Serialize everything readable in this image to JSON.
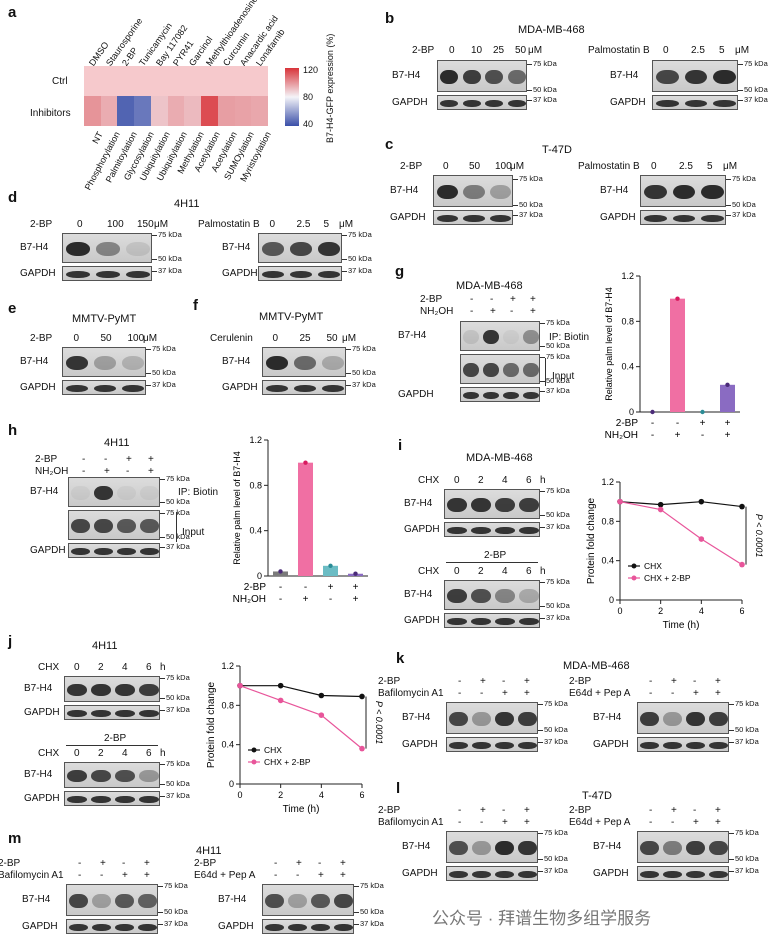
{
  "panel_a": {
    "letter": "a",
    "columns": [
      "DMSO",
      "Staurosporine",
      "2-BP",
      "Tunicamycin",
      "Bay 117082",
      "PYR41",
      "Garcinol",
      "Methylthioadenosine",
      "Curcumin",
      "Anacardic acid",
      "Lonafarnib"
    ],
    "rows": [
      "Ctrl",
      "Inhibitors"
    ],
    "bottom_labels": [
      "NT",
      "Phosphorylation",
      "Palmitoylation",
      "Glycosylation",
      "Ubiquitylation",
      "Ubiquitylation",
      "Methylation",
      "Acetylation",
      "Acetylation",
      "SUMOylation",
      "Myristoylation"
    ],
    "colorbar_label": "B7-H4-GFP expression (%)",
    "colorbar_ticks": [
      "120",
      "80",
      "40"
    ],
    "chart_data": {
      "type": "heatmap",
      "rows": [
        "Ctrl",
        "Inhibitors"
      ],
      "columns": [
        "DMSO",
        "Staurosporine",
        "2-BP",
        "Tunicamycin",
        "Bay 117082",
        "PYR41",
        "Garcinol",
        "Methylthioadenosine",
        "Curcumin",
        "Anacardic acid",
        "Lonafarnib"
      ],
      "values": [
        [
          100,
          100,
          100,
          100,
          100,
          100,
          100,
          100,
          100,
          100,
          100
        ],
        [
          100,
          95,
          45,
          50,
          90,
          95,
          92,
          115,
          98,
          97,
          96
        ]
      ],
      "scale": [
        40,
        120
      ],
      "colors": {
        "low": "#3a4fa8",
        "mid": "#f4f4f8",
        "high": "#d8343a"
      }
    }
  },
  "panel_b": {
    "letter": "b",
    "title": "MDA-MB-468",
    "left": {
      "treatment": "2-BP",
      "doses": [
        "0",
        "10",
        "25",
        "50"
      ],
      "unit": "μM",
      "rows": [
        "B7-H4",
        "GAPDH"
      ],
      "markers": [
        "75 kDa",
        "50 kDa",
        "37 kDa"
      ]
    },
    "right": {
      "treatment": "Palmostatin B",
      "doses": [
        "0",
        "2.5",
        "5"
      ],
      "unit": "μM",
      "rows": [
        "B7-H4",
        "GAPDH"
      ],
      "markers": [
        "75 kDa",
        "50 kDa",
        "37 kDa"
      ]
    }
  },
  "panel_c": {
    "letter": "c",
    "title": "T-47D",
    "left": {
      "treatment": "2-BP",
      "doses": [
        "0",
        "50",
        "100"
      ],
      "unit": "μM",
      "rows": [
        "B7-H4",
        "GAPDH"
      ],
      "markers": [
        "75 kDa",
        "50 kDa",
        "37 kDa"
      ]
    },
    "right": {
      "treatment": "Palmostatin B",
      "doses": [
        "0",
        "2.5",
        "5"
      ],
      "unit": "μM",
      "rows": [
        "B7-H4",
        "GAPDH"
      ],
      "markers": [
        "75 kDa",
        "50 kDa",
        "37 kDa"
      ]
    }
  },
  "panel_d": {
    "letter": "d",
    "title": "4H11",
    "left": {
      "treatment": "2-BP",
      "doses": [
        "0",
        "100",
        "150"
      ],
      "unit": "μM",
      "rows": [
        "B7-H4",
        "GAPDH"
      ],
      "markers": [
        "75 kDa",
        "50 kDa",
        "37 kDa"
      ]
    },
    "right": {
      "treatment": "Palmostatin B",
      "doses": [
        "0",
        "2.5",
        "5"
      ],
      "unit": "μM",
      "rows": [
        "B7-H4",
        "GAPDH"
      ],
      "markers": [
        "75 kDa",
        "50 kDa",
        "37 kDa"
      ]
    }
  },
  "panel_e": {
    "letter": "e",
    "title": "MMTV-PyMT",
    "treatment": "2-BP",
    "doses": [
      "0",
      "50",
      "100"
    ],
    "unit": "μM",
    "rows": [
      "B7-H4",
      "GAPDH"
    ],
    "markers": [
      "75 kDa",
      "50 kDa",
      "37 kDa"
    ]
  },
  "panel_f": {
    "letter": "f",
    "title": "MMTV-PyMT",
    "treatment": "Cerulenin",
    "doses": [
      "0",
      "25",
      "50"
    ],
    "unit": "μM",
    "rows": [
      "B7-H4",
      "GAPDH"
    ],
    "markers": [
      "75 kDa",
      "50 kDa",
      "37 kDa"
    ]
  },
  "panel_g": {
    "letter": "g",
    "title": "MDA-MB-468",
    "cond_rows": [
      {
        "label": "2-BP",
        "signs": [
          "-",
          "-",
          "+",
          "+"
        ]
      },
      {
        "label": "NH₂OH",
        "signs": [
          "-",
          "+",
          "-",
          "+"
        ]
      }
    ],
    "rows": [
      "B7-H4",
      "GAPDH"
    ],
    "ip_label": "IP: Biotin",
    "input_label": "Input",
    "markers": [
      "75 kDa",
      "50 kDa",
      "75 kDa",
      "50 kDa",
      "37 kDa"
    ],
    "chart_data": {
      "type": "bar",
      "categories": [
        "1",
        "2",
        "3",
        "4"
      ],
      "values": [
        0.0,
        1.0,
        0.0,
        0.24
      ],
      "colors": [
        "#3c3c3c",
        "#f06fa3",
        "#6bbcc4",
        "#8a6bc2"
      ],
      "ylabel": "Relative palm level of B7-H4",
      "ylim": [
        0,
        1.2
      ],
      "yticks": [
        "0",
        "0.4",
        "0.8",
        "1.2"
      ],
      "x_rows": [
        {
          "label": "2-BP",
          "signs": [
            "-",
            "-",
            "+",
            "+"
          ]
        },
        {
          "label": "NH₂OH",
          "signs": [
            "-",
            "+",
            "-",
            "+"
          ]
        }
      ]
    }
  },
  "panel_h": {
    "letter": "h",
    "title": "4H11",
    "cond_rows": [
      {
        "label": "2-BP",
        "signs": [
          "-",
          "-",
          "+",
          "+"
        ]
      },
      {
        "label": "NH₂OH",
        "signs": [
          "-",
          "+",
          "-",
          "+"
        ]
      }
    ],
    "rows": [
      "B7-H4",
      "GAPDH"
    ],
    "ip_label": "IP: Biotin",
    "input_label": "Input",
    "markers": [
      "75 kDa",
      "50 kDa",
      "75 kDa",
      "50 kDa",
      "37 kDa"
    ],
    "chart_data": {
      "type": "bar",
      "categories": [
        "1",
        "2",
        "3",
        "4"
      ],
      "values": [
        0.04,
        1.0,
        0.09,
        0.02
      ],
      "colors": [
        "#7a7a7a",
        "#f06fa3",
        "#6bbcc4",
        "#8a6bc2"
      ],
      "ylabel": "Relative palm level of B7-H4",
      "ylim": [
        0,
        1.2
      ],
      "yticks": [
        "0",
        "0.4",
        "0.8",
        "1.2"
      ],
      "x_rows": [
        {
          "label": "2-BP",
          "signs": [
            "-",
            "-",
            "+",
            "+"
          ]
        },
        {
          "label": "NH₂OH",
          "signs": [
            "-",
            "+",
            "-",
            "+"
          ]
        }
      ]
    }
  },
  "panel_i": {
    "letter": "i",
    "title": "MDA-MB-468",
    "top_label": "CHX",
    "times": [
      "0",
      "2",
      "4",
      "6"
    ],
    "time_unit": "h",
    "sub_label": "2-BP",
    "rows": [
      "B7-H4",
      "GAPDH"
    ],
    "markers": [
      "75 kDa",
      "50 kDa",
      "37 kDa"
    ],
    "chart_data": {
      "type": "line",
      "x": [
        0,
        2,
        4,
        6
      ],
      "series": [
        {
          "name": "CHX",
          "values": [
            1.0,
            0.97,
            1.0,
            0.95
          ],
          "color": "#111111"
        },
        {
          "name": "CHX + 2-BP",
          "values": [
            1.0,
            0.92,
            0.62,
            0.36
          ],
          "color": "#e8559a"
        }
      ],
      "xlabel": "Time (h)",
      "ylabel": "Protein fold change",
      "xlim": [
        0,
        6
      ],
      "ylim": [
        0,
        1.2
      ],
      "xticks": [
        "0",
        "2",
        "4",
        "6"
      ],
      "yticks": [
        "0",
        "0.4",
        "0.8",
        "1.2"
      ],
      "annotation": "P < 0.0001"
    }
  },
  "panel_j": {
    "letter": "j",
    "title": "4H11",
    "top_label": "CHX",
    "times": [
      "0",
      "2",
      "4",
      "6"
    ],
    "time_unit": "h",
    "sub_label": "2-BP",
    "rows": [
      "B7-H4",
      "GAPDH"
    ],
    "markers": [
      "75 kDa",
      "50 kDa",
      "37 kDa"
    ],
    "chart_data": {
      "type": "line",
      "x": [
        0,
        2,
        4,
        6
      ],
      "series": [
        {
          "name": "CHX",
          "values": [
            1.0,
            1.0,
            0.9,
            0.89
          ],
          "color": "#111111"
        },
        {
          "name": "CHX + 2-BP",
          "values": [
            1.0,
            0.85,
            0.7,
            0.36
          ],
          "color": "#e8559a"
        }
      ],
      "xlabel": "Time (h)",
      "ylabel": "Protein fold change",
      "xlim": [
        0,
        6
      ],
      "ylim": [
        0,
        1.2
      ],
      "xticks": [
        "0",
        "2",
        "4",
        "6"
      ],
      "yticks": [
        "0",
        "0.4",
        "0.8",
        "1.2"
      ],
      "annotation": "P < 0.0001"
    }
  },
  "panel_k": {
    "letter": "k",
    "title": "MDA-MB-468",
    "left": {
      "cond_rows": [
        {
          "label": "2-BP",
          "signs": [
            "-",
            "+",
            "-",
            "+"
          ]
        },
        {
          "label": "Bafilomycin A1",
          "signs": [
            "-",
            "-",
            "+",
            "+"
          ]
        }
      ]
    },
    "right": {
      "cond_rows": [
        {
          "label": "2-BP",
          "signs": [
            "-",
            "+",
            "-",
            "+"
          ]
        },
        {
          "label": "E64d + Pep A",
          "signs": [
            "-",
            "-",
            "+",
            "+"
          ]
        }
      ]
    },
    "rows": [
      "B7-H4",
      "GAPDH"
    ],
    "markers": [
      "75 kDa",
      "50 kDa",
      "37 kDa"
    ]
  },
  "panel_l": {
    "letter": "l",
    "title": "T-47D",
    "left": {
      "cond_rows": [
        {
          "label": "2-BP",
          "signs": [
            "-",
            "+",
            "-",
            "+"
          ]
        },
        {
          "label": "Bafilomycin A1",
          "signs": [
            "-",
            "-",
            "+",
            "+"
          ]
        }
      ]
    },
    "right": {
      "cond_rows": [
        {
          "label": "2-BP",
          "signs": [
            "-",
            "+",
            "-",
            "+"
          ]
        },
        {
          "label": "E64d + Pep A",
          "signs": [
            "-",
            "-",
            "+",
            "+"
          ]
        }
      ]
    },
    "rows": [
      "B7-H4",
      "GAPDH"
    ],
    "markers": [
      "75 kDa",
      "50 kDa",
      "37 kDa"
    ]
  },
  "panel_m": {
    "letter": "m",
    "title": "4H11",
    "left": {
      "cond_rows": [
        {
          "label": "2-BP",
          "signs": [
            "-",
            "+",
            "-",
            "+"
          ]
        },
        {
          "label": "Bafilomycin A1",
          "signs": [
            "-",
            "-",
            "+",
            "+"
          ]
        }
      ]
    },
    "right": {
      "cond_rows": [
        {
          "label": "2-BP",
          "signs": [
            "-",
            "+",
            "-",
            "+"
          ]
        },
        {
          "label": "E64d + Pep A",
          "signs": [
            "-",
            "-",
            "+",
            "+"
          ]
        }
      ]
    },
    "rows": [
      "B7-H4",
      "GAPDH"
    ],
    "markers": [
      "75 kDa",
      "50 kDa",
      "37 kDa"
    ]
  },
  "watermark": "公众号 · 拜谱生物多组学服务"
}
